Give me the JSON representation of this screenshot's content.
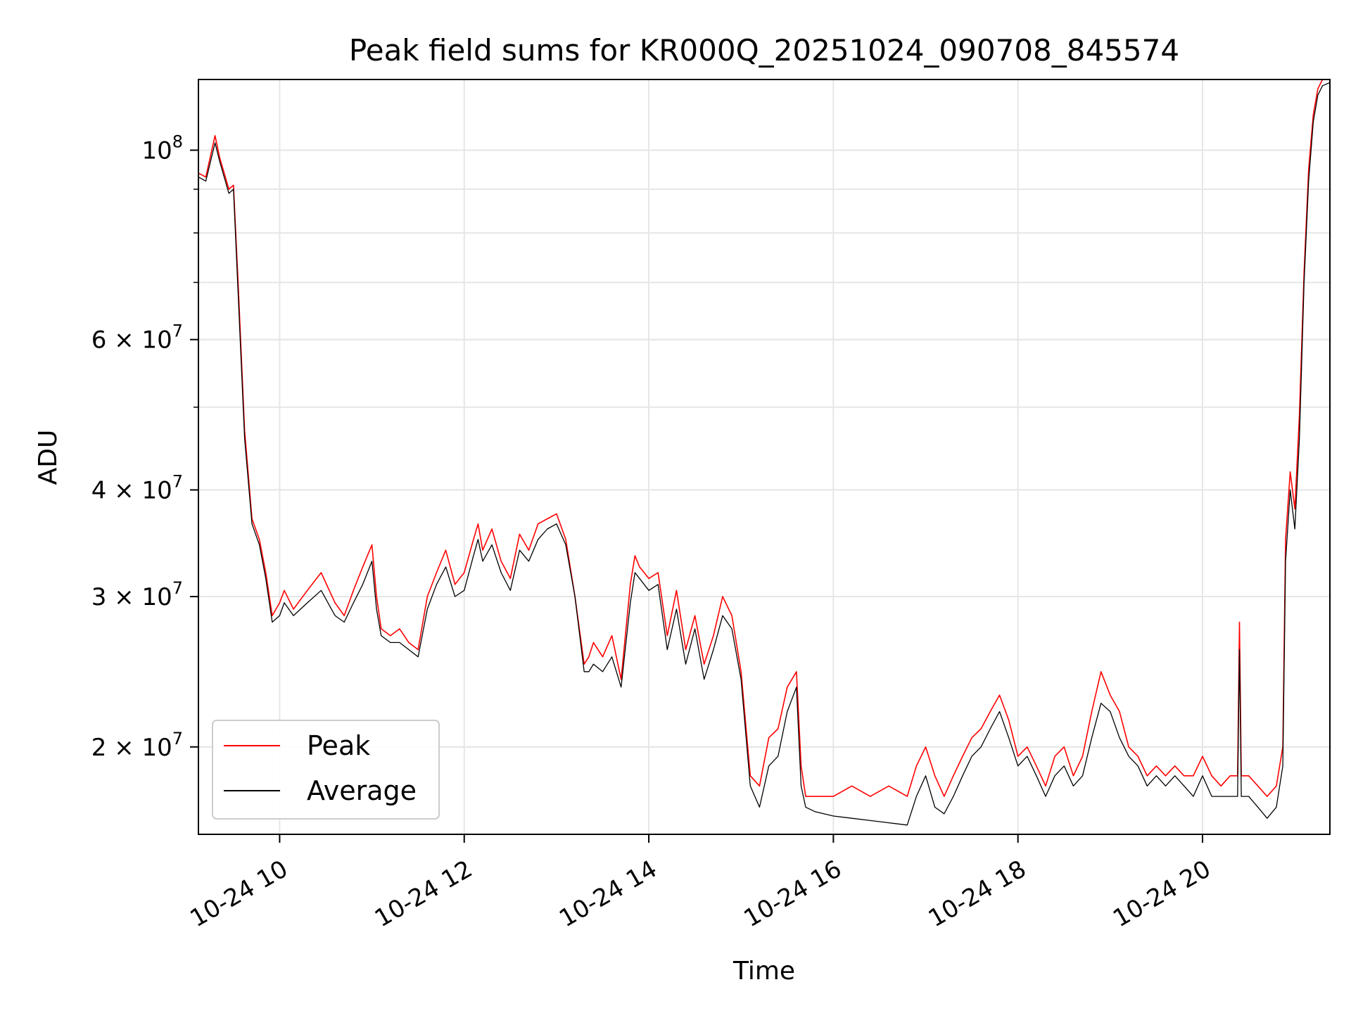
{
  "chart_data": {
    "type": "line",
    "title": "Peak field sums for KR000Q_20251024_090708_845574",
    "xlabel": "Time",
    "ylabel": "ADU",
    "x_unit": "hour of 2025-10-24",
    "xlim": [
      9.12,
      21.38
    ],
    "ylim": [
      15800000,
      121000000
    ],
    "yscale": "log",
    "grid": true,
    "legend": "lower left",
    "x_ticks": [
      {
        "value": 10,
        "label": "10-24 10"
      },
      {
        "value": 12,
        "label": "10-24 12"
      },
      {
        "value": 14,
        "label": "10-24 14"
      },
      {
        "value": 16,
        "label": "10-24 16"
      },
      {
        "value": 18,
        "label": "10-24 18"
      },
      {
        "value": 20,
        "label": "10-24 20"
      }
    ],
    "y_ticks": [
      {
        "value": 20000000,
        "mantissa": "2",
        "exp": "7"
      },
      {
        "value": 30000000,
        "mantissa": "3",
        "exp": "7"
      },
      {
        "value": 40000000,
        "mantissa": "4",
        "exp": "7"
      },
      {
        "value": 60000000,
        "mantissa": "6",
        "exp": "7"
      },
      {
        "value": 100000000,
        "mantissa": "",
        "exp": "8"
      }
    ],
    "series": [
      {
        "name": "Peak",
        "color": "#ff0000",
        "x": [
          9.12,
          9.2,
          9.3,
          9.35,
          9.45,
          9.5,
          9.55,
          9.62,
          9.7,
          9.78,
          9.85,
          9.92,
          10.0,
          10.05,
          10.15,
          10.3,
          10.45,
          10.6,
          10.7,
          10.8,
          10.9,
          11.0,
          11.05,
          11.1,
          11.2,
          11.3,
          11.4,
          11.5,
          11.6,
          11.7,
          11.8,
          11.9,
          12.0,
          12.1,
          12.15,
          12.2,
          12.3,
          12.4,
          12.5,
          12.6,
          12.7,
          12.8,
          12.9,
          13.0,
          13.1,
          13.2,
          13.3,
          13.35,
          13.4,
          13.5,
          13.6,
          13.7,
          13.8,
          13.85,
          13.9,
          14.0,
          14.1,
          14.2,
          14.3,
          14.4,
          14.5,
          14.6,
          14.7,
          14.8,
          14.9,
          15.0,
          15.1,
          15.2,
          15.3,
          15.4,
          15.5,
          15.6,
          15.65,
          15.7,
          15.8,
          16.0,
          16.2,
          16.4,
          16.6,
          16.8,
          16.9,
          17.0,
          17.1,
          17.2,
          17.3,
          17.4,
          17.5,
          17.6,
          17.7,
          17.8,
          17.9,
          18.0,
          18.1,
          18.2,
          18.3,
          18.4,
          18.5,
          18.6,
          18.7,
          18.8,
          18.9,
          19.0,
          19.1,
          19.2,
          19.3,
          19.4,
          19.5,
          19.6,
          19.7,
          19.8,
          19.9,
          20.0,
          20.1,
          20.2,
          20.3,
          20.38,
          20.4,
          20.42,
          20.5,
          20.6,
          20.7,
          20.8,
          20.87,
          20.9,
          20.95,
          21.0,
          21.05,
          21.1,
          21.15,
          21.2,
          21.25,
          21.3,
          21.38
        ],
        "y": [
          94000000,
          93000000,
          104000000,
          98000000,
          90000000,
          91000000,
          70000000,
          47000000,
          37000000,
          35000000,
          32000000,
          28500000,
          29500000,
          30500000,
          29000000,
          30500000,
          32000000,
          29500000,
          28500000,
          30500000,
          32500000,
          34500000,
          30000000,
          27500000,
          27000000,
          27500000,
          26500000,
          26000000,
          30000000,
          32000000,
          34000000,
          31000000,
          32000000,
          35000000,
          36500000,
          34000000,
          36000000,
          33000000,
          31500000,
          35500000,
          34000000,
          36500000,
          37000000,
          37500000,
          35000000,
          30000000,
          25000000,
          25500000,
          26500000,
          25500000,
          27000000,
          24000000,
          31000000,
          33500000,
          32500000,
          31500000,
          32000000,
          27000000,
          30500000,
          26000000,
          28500000,
          25000000,
          27000000,
          30000000,
          28500000,
          24500000,
          18500000,
          18000000,
          20500000,
          21000000,
          23500000,
          24500000,
          19000000,
          17500000,
          17500000,
          17500000,
          18000000,
          17500000,
          18000000,
          17500000,
          19000000,
          20000000,
          18500000,
          17500000,
          18500000,
          19500000,
          20500000,
          21000000,
          22000000,
          23000000,
          21500000,
          19500000,
          20000000,
          19000000,
          18000000,
          19500000,
          20000000,
          18500000,
          19500000,
          22000000,
          24500000,
          23000000,
          22000000,
          20000000,
          19500000,
          18500000,
          19000000,
          18500000,
          19000000,
          18500000,
          18500000,
          19500000,
          18500000,
          18000000,
          18500000,
          18500000,
          28000000,
          18500000,
          18500000,
          18000000,
          17500000,
          18000000,
          20000000,
          35000000,
          42000000,
          38000000,
          49000000,
          72000000,
          95000000,
          110000000,
          118000000,
          121000000,
          121000000
        ]
      },
      {
        "name": "Average",
        "color": "#000000",
        "x": [
          9.12,
          9.2,
          9.3,
          9.35,
          9.45,
          9.5,
          9.55,
          9.62,
          9.7,
          9.78,
          9.85,
          9.92,
          10.0,
          10.05,
          10.15,
          10.3,
          10.45,
          10.6,
          10.7,
          10.8,
          10.9,
          11.0,
          11.05,
          11.1,
          11.2,
          11.3,
          11.4,
          11.5,
          11.6,
          11.7,
          11.8,
          11.9,
          12.0,
          12.1,
          12.15,
          12.2,
          12.3,
          12.4,
          12.5,
          12.6,
          12.7,
          12.8,
          12.9,
          13.0,
          13.1,
          13.2,
          13.3,
          13.35,
          13.4,
          13.5,
          13.6,
          13.7,
          13.8,
          13.85,
          13.9,
          14.0,
          14.1,
          14.2,
          14.3,
          14.4,
          14.5,
          14.6,
          14.7,
          14.8,
          14.9,
          15.0,
          15.1,
          15.2,
          15.3,
          15.4,
          15.5,
          15.6,
          15.65,
          15.7,
          15.8,
          16.0,
          16.2,
          16.4,
          16.6,
          16.8,
          16.9,
          17.0,
          17.1,
          17.2,
          17.3,
          17.4,
          17.5,
          17.6,
          17.7,
          17.8,
          17.9,
          18.0,
          18.1,
          18.2,
          18.3,
          18.4,
          18.5,
          18.6,
          18.7,
          18.8,
          18.9,
          19.0,
          19.1,
          19.2,
          19.3,
          19.4,
          19.5,
          19.6,
          19.7,
          19.8,
          19.9,
          20.0,
          20.1,
          20.2,
          20.3,
          20.38,
          20.4,
          20.42,
          20.5,
          20.6,
          20.7,
          20.8,
          20.87,
          20.9,
          20.95,
          21.0,
          21.05,
          21.1,
          21.15,
          21.2,
          21.25,
          21.3,
          21.38
        ],
        "y": [
          93000000,
          92000000,
          102000000,
          97000000,
          89000000,
          90000000,
          68000000,
          46000000,
          36500000,
          34500000,
          31500000,
          28000000,
          28500000,
          29500000,
          28500000,
          29500000,
          30500000,
          28500000,
          28000000,
          29500000,
          31000000,
          33000000,
          29000000,
          27000000,
          26500000,
          26500000,
          26000000,
          25500000,
          29000000,
          31000000,
          32500000,
          30000000,
          30500000,
          33500000,
          35000000,
          33000000,
          34500000,
          32000000,
          30500000,
          34000000,
          33000000,
          35000000,
          36000000,
          36500000,
          34500000,
          30000000,
          24500000,
          24500000,
          25000000,
          24500000,
          25500000,
          23500000,
          29500000,
          32000000,
          31500000,
          30500000,
          31000000,
          26000000,
          29000000,
          25000000,
          27500000,
          24000000,
          26000000,
          28500000,
          27500000,
          24000000,
          18000000,
          17000000,
          19000000,
          19500000,
          22000000,
          23500000,
          18000000,
          17000000,
          16800000,
          16600000,
          16500000,
          16400000,
          16300000,
          16200000,
          17500000,
          18500000,
          17000000,
          16700000,
          17500000,
          18500000,
          19500000,
          20000000,
          21000000,
          22000000,
          20500000,
          19000000,
          19500000,
          18500000,
          17500000,
          18500000,
          19000000,
          18000000,
          18500000,
          20500000,
          22500000,
          22000000,
          20500000,
          19500000,
          19000000,
          18000000,
          18500000,
          18000000,
          18500000,
          18000000,
          17500000,
          18500000,
          17500000,
          17500000,
          17500000,
          17500000,
          26000000,
          17500000,
          17500000,
          17000000,
          16500000,
          17000000,
          19000000,
          33000000,
          40000000,
          36000000,
          46000000,
          70000000,
          92000000,
          108000000,
          116000000,
          119000000,
          120000000
        ]
      }
    ]
  }
}
